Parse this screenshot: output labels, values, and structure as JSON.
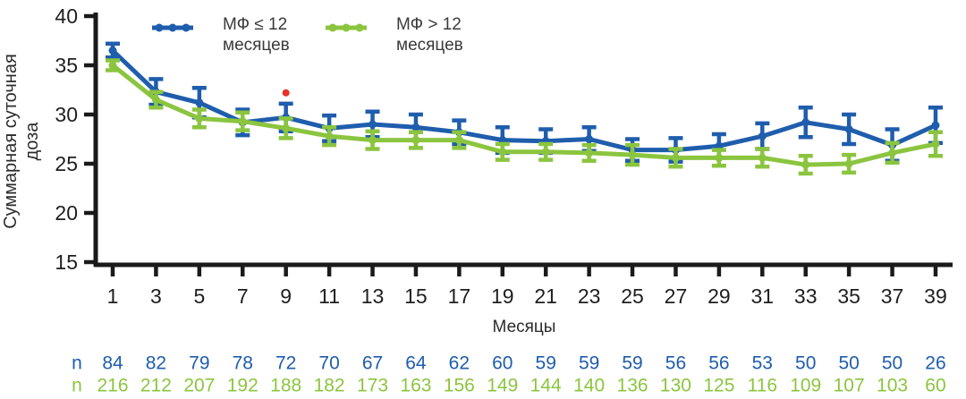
{
  "figure": {
    "background": "#ffffff",
    "axis_color": "#1a1a1a",
    "text_color": "#2b2b2b"
  },
  "chart_data": {
    "type": "line",
    "x": [
      1,
      3,
      5,
      7,
      9,
      11,
      13,
      15,
      17,
      19,
      21,
      23,
      25,
      27,
      29,
      31,
      33,
      35,
      37,
      39
    ],
    "xlabel": "Месяцы",
    "ylabel": "Суммарная суточная доза",
    "ylim": [
      15,
      40
    ],
    "yticks": [
      15,
      20,
      25,
      30,
      35,
      40
    ],
    "grid": false,
    "legend_position": "top-left-inside",
    "error_bars": true,
    "n_row_label": "n",
    "series": [
      {
        "name": "МФ ≤ 12 месяцев",
        "color": "#1f5dad",
        "values": [
          36.5,
          32.3,
          31.2,
          29.2,
          29.7,
          28.6,
          29.0,
          28.7,
          28.2,
          27.4,
          27.3,
          27.5,
          26.4,
          26.4,
          26.8,
          27.8,
          29.2,
          28.5,
          26.9,
          28.9
        ],
        "errors": [
          0.7,
          1.3,
          1.5,
          1.3,
          1.4,
          1.3,
          1.3,
          1.3,
          1.2,
          1.3,
          1.2,
          1.2,
          1.1,
          1.2,
          1.2,
          1.3,
          1.5,
          1.5,
          1.6,
          1.8
        ],
        "n": [
          84,
          82,
          79,
          78,
          72,
          70,
          67,
          64,
          62,
          60,
          59,
          59,
          59,
          56,
          56,
          53,
          50,
          50,
          50,
          26
        ]
      },
      {
        "name": "МФ > 12 месяцев",
        "color": "#8bc53f",
        "values": [
          35.0,
          31.5,
          29.6,
          29.3,
          28.6,
          27.8,
          27.4,
          27.4,
          27.4,
          26.2,
          26.2,
          26.1,
          25.9,
          25.6,
          25.6,
          25.6,
          24.9,
          25.0,
          26.1,
          27.0
        ],
        "errors": [
          0.5,
          0.8,
          0.9,
          0.9,
          1.0,
          0.9,
          0.9,
          0.8,
          0.8,
          0.8,
          0.8,
          0.8,
          1.0,
          0.9,
          0.8,
          0.9,
          0.9,
          0.9,
          1.0,
          1.2
        ],
        "n": [
          216,
          212,
          207,
          192,
          188,
          182,
          173,
          163,
          156,
          149,
          144,
          140,
          136,
          130,
          125,
          116,
          109,
          107,
          103,
          60
        ]
      }
    ],
    "annotation": {
      "x": 9,
      "y": 32.2,
      "symbol": "•",
      "color": "#e5332a"
    }
  }
}
